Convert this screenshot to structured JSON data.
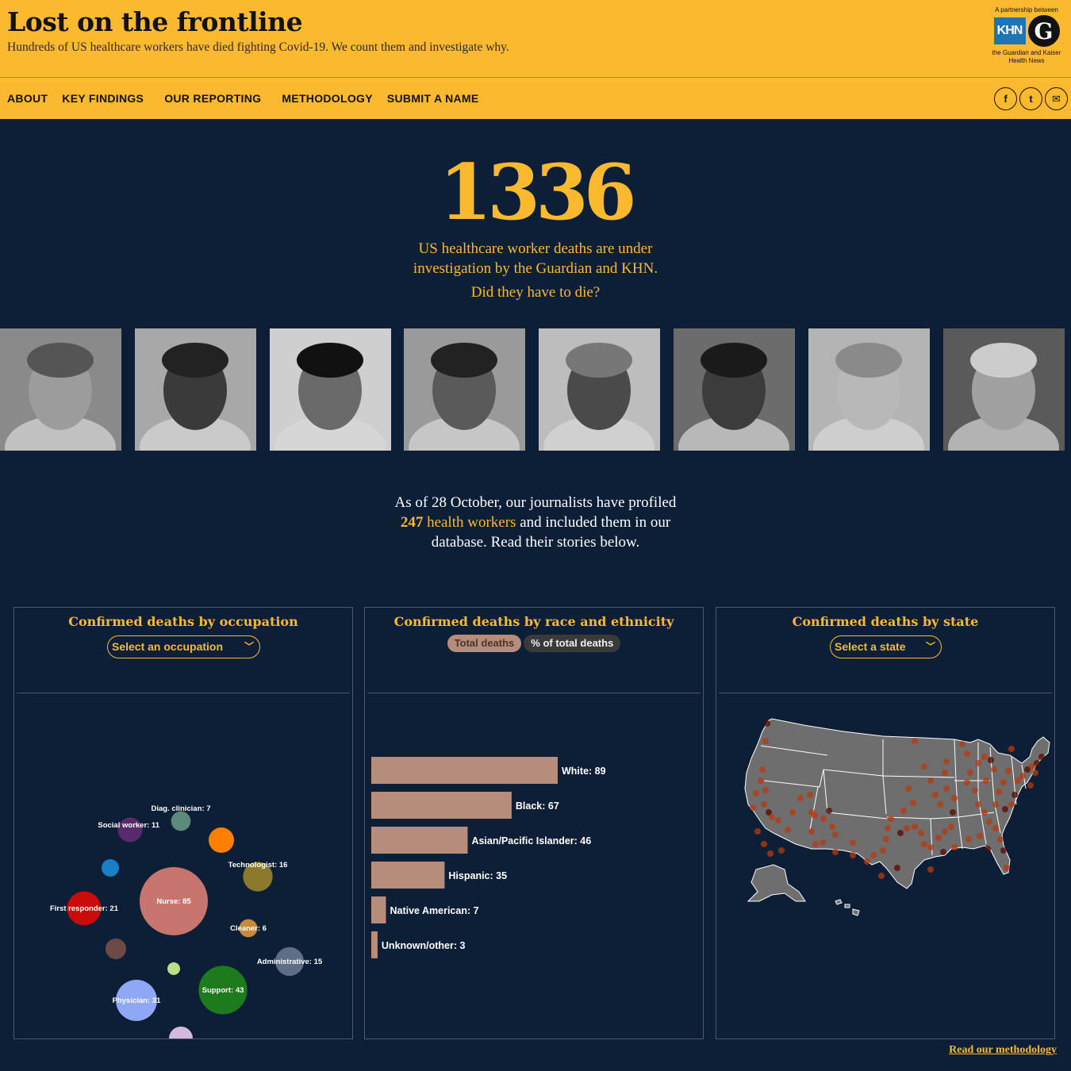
{
  "header": {
    "title": "Lost on the frontline",
    "subtitle": "Hundreds of US healthcare workers have died fighting Covid-19. We count them and investigate why.",
    "partner_top": "A partnership between",
    "khn_logo": "KHN",
    "guardian_logo": "G",
    "partner_bottom": "the Guardian and Kaiser Health News"
  },
  "nav": {
    "items": [
      "ABOUT",
      "KEY FINDINGS",
      "OUR REPORTING",
      "METHODOLOGY",
      "SUBMIT A NAME"
    ]
  },
  "social": {
    "facebook": "f",
    "twitter": "t",
    "email": "✉"
  },
  "hero": {
    "count": "1336",
    "lead_line1": "US healthcare worker deaths are under",
    "lead_line2": "investigation by the Guardian and KHN.",
    "question": "Did they have to die?"
  },
  "profiled": {
    "line1": "As of 28 October, our journalists have profiled",
    "count": "247",
    "link": "health workers",
    "line2_rest": " and included them in our",
    "line3": "database. Read their stories below."
  },
  "occupation_panel": {
    "title": "Confirmed deaths by occupation",
    "select_label": "Select an occupation",
    "bubbles": [
      {
        "label": "Nurse: 85",
        "value": 85,
        "color": "#c87570"
      },
      {
        "label": "Support: 43",
        "value": 43,
        "color": "#1d7a1d"
      },
      {
        "label": "Physician: 31",
        "value": 31,
        "color": "#8fa8f5"
      },
      {
        "label": "First responder: 21",
        "value": 21,
        "color": "#cc0a0a"
      },
      {
        "label": "Technologist: 16",
        "value": 16,
        "color": "#8c7a2c"
      },
      {
        "label": "Administrative: 15",
        "value": 15,
        "color": "#5d6e86"
      },
      {
        "label": "Social worker: 11",
        "value": 11,
        "color": "#5a2a6e"
      },
      {
        "label": "Diag. clinician: 7",
        "value": 7,
        "color": "#5d8a7a"
      },
      {
        "label": "Cleaner: 6",
        "value": 6,
        "color": "#c8893a"
      },
      {
        "label": "",
        "color": "#ff8000"
      },
      {
        "label": "",
        "color": "#1a7fc4"
      },
      {
        "label": "",
        "color": "#6e4a46"
      },
      {
        "label": "",
        "color": "#b8e08a"
      },
      {
        "label": "",
        "color": "#d4b8dd"
      }
    ]
  },
  "race_panel": {
    "title": "Confirmed deaths by race and ethnicity",
    "toggle_total": "Total deaths",
    "toggle_pct": "% of total deaths",
    "bar_color": "#b58d7a"
  },
  "chart_data": {
    "type": "bar",
    "orientation": "horizontal",
    "categories": [
      "White",
      "Black",
      "Asian/Pacific Islander",
      "Hispanic",
      "Native American",
      "Unknown/other"
    ],
    "values": [
      89,
      67,
      46,
      35,
      7,
      3
    ],
    "labels": [
      "White: 89",
      "Black: 67",
      "Asian/Pacific Islander: 46",
      "Hispanic: 35",
      "Native American: 7",
      "Unknown/other: 3"
    ]
  },
  "state_panel": {
    "title": "Confirmed deaths by state",
    "select_label": "Select a state"
  },
  "footer": {
    "methodology_link": "Read our methodology"
  },
  "colors": {
    "accent": "#fbb92f",
    "background": "#0d1f36",
    "map_fill": "#6e6e6e",
    "dot": "#b83a10"
  }
}
